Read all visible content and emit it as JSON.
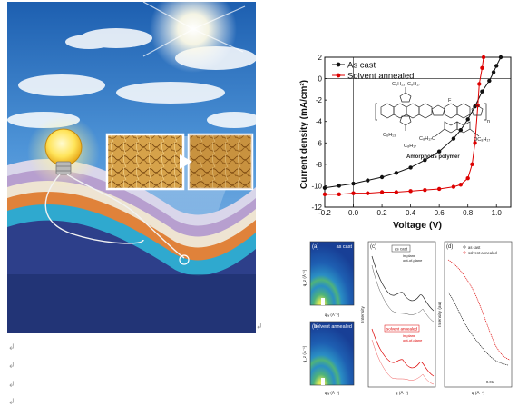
{
  "return_marks": {
    "cover": "↲",
    "line1": "↲",
    "line2": "↲",
    "line3": "↲",
    "line4": "↲"
  },
  "jv_chart": {
    "chart_data": {
      "type": "line",
      "xlabel": "Voltage (V)",
      "ylabel": "Current density (mA/cm²)",
      "xlim": [
        -0.2,
        1.1
      ],
      "ylim": [
        -12,
        2
      ],
      "xticks": [
        "-0.2",
        "0.0",
        "0.2",
        "0.4",
        "0.6",
        "0.8",
        "1.0"
      ],
      "yticks": [
        "2",
        "0",
        "-2",
        "-4",
        "-6",
        "-8",
        "-10",
        "-12"
      ],
      "legend_placement": "top-left",
      "series": [
        {
          "name": "As cast",
          "color": "#111111",
          "marker": "filled-circle",
          "x": [
            -0.2,
            -0.1,
            0.0,
            0.1,
            0.2,
            0.3,
            0.4,
            0.5,
            0.6,
            0.7,
            0.75,
            0.8,
            0.85,
            0.9,
            0.95,
            0.98,
            1.0,
            1.03
          ],
          "y": [
            -10.2,
            -10.0,
            -9.8,
            -9.5,
            -9.2,
            -8.8,
            -8.3,
            -7.6,
            -6.8,
            -5.6,
            -4.8,
            -3.8,
            -2.6,
            -1.2,
            -0.2,
            0.6,
            1.2,
            2.0
          ]
        },
        {
          "name": "Solvent annealed",
          "color": "#dd0000",
          "marker": "filled-circle",
          "x": [
            -0.2,
            -0.1,
            0.0,
            0.1,
            0.2,
            0.3,
            0.4,
            0.5,
            0.6,
            0.7,
            0.75,
            0.8,
            0.83,
            0.85,
            0.87,
            0.88,
            0.9,
            0.91
          ],
          "y": [
            -10.8,
            -10.8,
            -10.7,
            -10.7,
            -10.6,
            -10.6,
            -10.5,
            -10.4,
            -10.3,
            -10.1,
            -9.9,
            -9.3,
            -8.0,
            -6.0,
            -2.5,
            -0.5,
            1.0,
            2.0
          ]
        }
      ]
    },
    "inset": {
      "caption": "Amorphous polymer",
      "substituents": [
        "C₆H₁₃",
        "C₈H₁₇",
        "C₆H₁₃",
        "C₈H₁₇",
        "C₈H₁₇O",
        "OC₈H₁₇",
        "F",
        "n"
      ]
    }
  },
  "giwaxs": {
    "panel_a": {
      "label": "(a)",
      "title": "as cast",
      "xlabel": "qₓᵧ (Å⁻¹)",
      "ylabel": "q_z (Å⁻¹)"
    },
    "panel_b": {
      "label": "(b)",
      "title": "solvent annealed",
      "xlabel": "qₓᵧ (Å⁻¹)",
      "ylabel": "q_z (Å⁻¹)"
    },
    "panel_c": {
      "label": "(c)",
      "ylabel": "Intensity",
      "xlabel": "q (Å⁻¹)",
      "legend_top": {
        "title": "as cast",
        "entries": [
          "in-plane",
          "out-of-plane"
        ]
      },
      "legend_bottom": {
        "title": "solvent annealed",
        "entries": [
          "in-plane",
          "out-of-plane"
        ]
      }
    },
    "panel_d": {
      "label": "(d)",
      "ylabel": "Intensity (au)",
      "xlabel": "q (Å⁻¹)",
      "legend": [
        "as cast",
        "solvent annealed"
      ],
      "tick": "0.01"
    }
  }
}
